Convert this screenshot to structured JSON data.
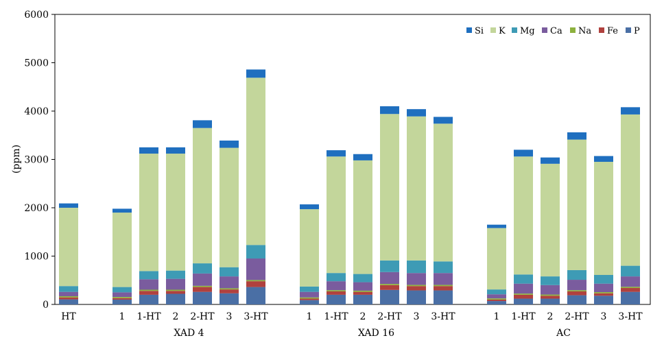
{
  "chart_data": {
    "type": "bar",
    "stacked": true,
    "title": "",
    "xlabel": "",
    "ylabel": "(ppm)",
    "ylim": [
      0,
      6000
    ],
    "yticks": [
      0,
      1000,
      2000,
      3000,
      4000,
      5000,
      6000
    ],
    "grid": false,
    "legend_position": "top-right",
    "legend_order": [
      "Si",
      "K",
      "Mg",
      "Ca",
      "Na",
      "Fe",
      "P"
    ],
    "categories": [
      "HT",
      "1",
      "1-HT",
      "2",
      "2-HT",
      "3",
      "3-HT",
      "1",
      "1-HT",
      "2",
      "2-HT",
      "3",
      "3-HT",
      "1",
      "1-HT",
      "2",
      "2-HT",
      "3",
      "3-HT"
    ],
    "groups": [
      {
        "label": "XAD 4",
        "start": 1,
        "end": 6
      },
      {
        "label": "XAD 16",
        "start": 7,
        "end": 12
      },
      {
        "label": "AC",
        "start": 13,
        "end": 18
      }
    ],
    "series": [
      {
        "name": "P",
        "color": "#4A6FA5",
        "values": [
          105,
          100,
          200,
          220,
          260,
          230,
          360,
          90,
          200,
          200,
          300,
          290,
          290,
          70,
          120,
          120,
          190,
          180,
          260
        ]
      },
      {
        "name": "Fe",
        "color": "#B0413E",
        "values": [
          40,
          30,
          80,
          60,
          100,
          80,
          120,
          30,
          70,
          60,
          100,
          90,
          90,
          30,
          80,
          60,
          80,
          50,
          80
        ]
      },
      {
        "name": "Na",
        "color": "#8DB13E",
        "values": [
          25,
          25,
          25,
          25,
          25,
          25,
          25,
          25,
          25,
          25,
          25,
          25,
          25,
          25,
          25,
          25,
          25,
          25,
          25
        ]
      },
      {
        "name": "Ca",
        "color": "#7A5C9E",
        "values": [
          90,
          95,
          215,
          225,
          255,
          245,
          445,
          115,
          185,
          175,
          245,
          245,
          245,
          85,
          205,
          195,
          215,
          175,
          215
        ]
      },
      {
        "name": "Mg",
        "color": "#3E9BB5",
        "values": [
          120,
          110,
          170,
          170,
          210,
          190,
          280,
          110,
          170,
          170,
          240,
          260,
          240,
          100,
          190,
          180,
          200,
          180,
          220
        ]
      },
      {
        "name": "K",
        "color": "#C3D69B",
        "values": [
          1620,
          1540,
          2430,
          2420,
          2800,
          2470,
          3460,
          1600,
          2410,
          2350,
          3030,
          2980,
          2850,
          1270,
          2440,
          2330,
          2700,
          2340,
          3130
        ]
      },
      {
        "name": "Si",
        "color": "#1F6FBF",
        "values": [
          90,
          80,
          130,
          130,
          160,
          150,
          170,
          100,
          130,
          130,
          160,
          150,
          140,
          70,
          140,
          130,
          150,
          120,
          150
        ]
      }
    ]
  }
}
